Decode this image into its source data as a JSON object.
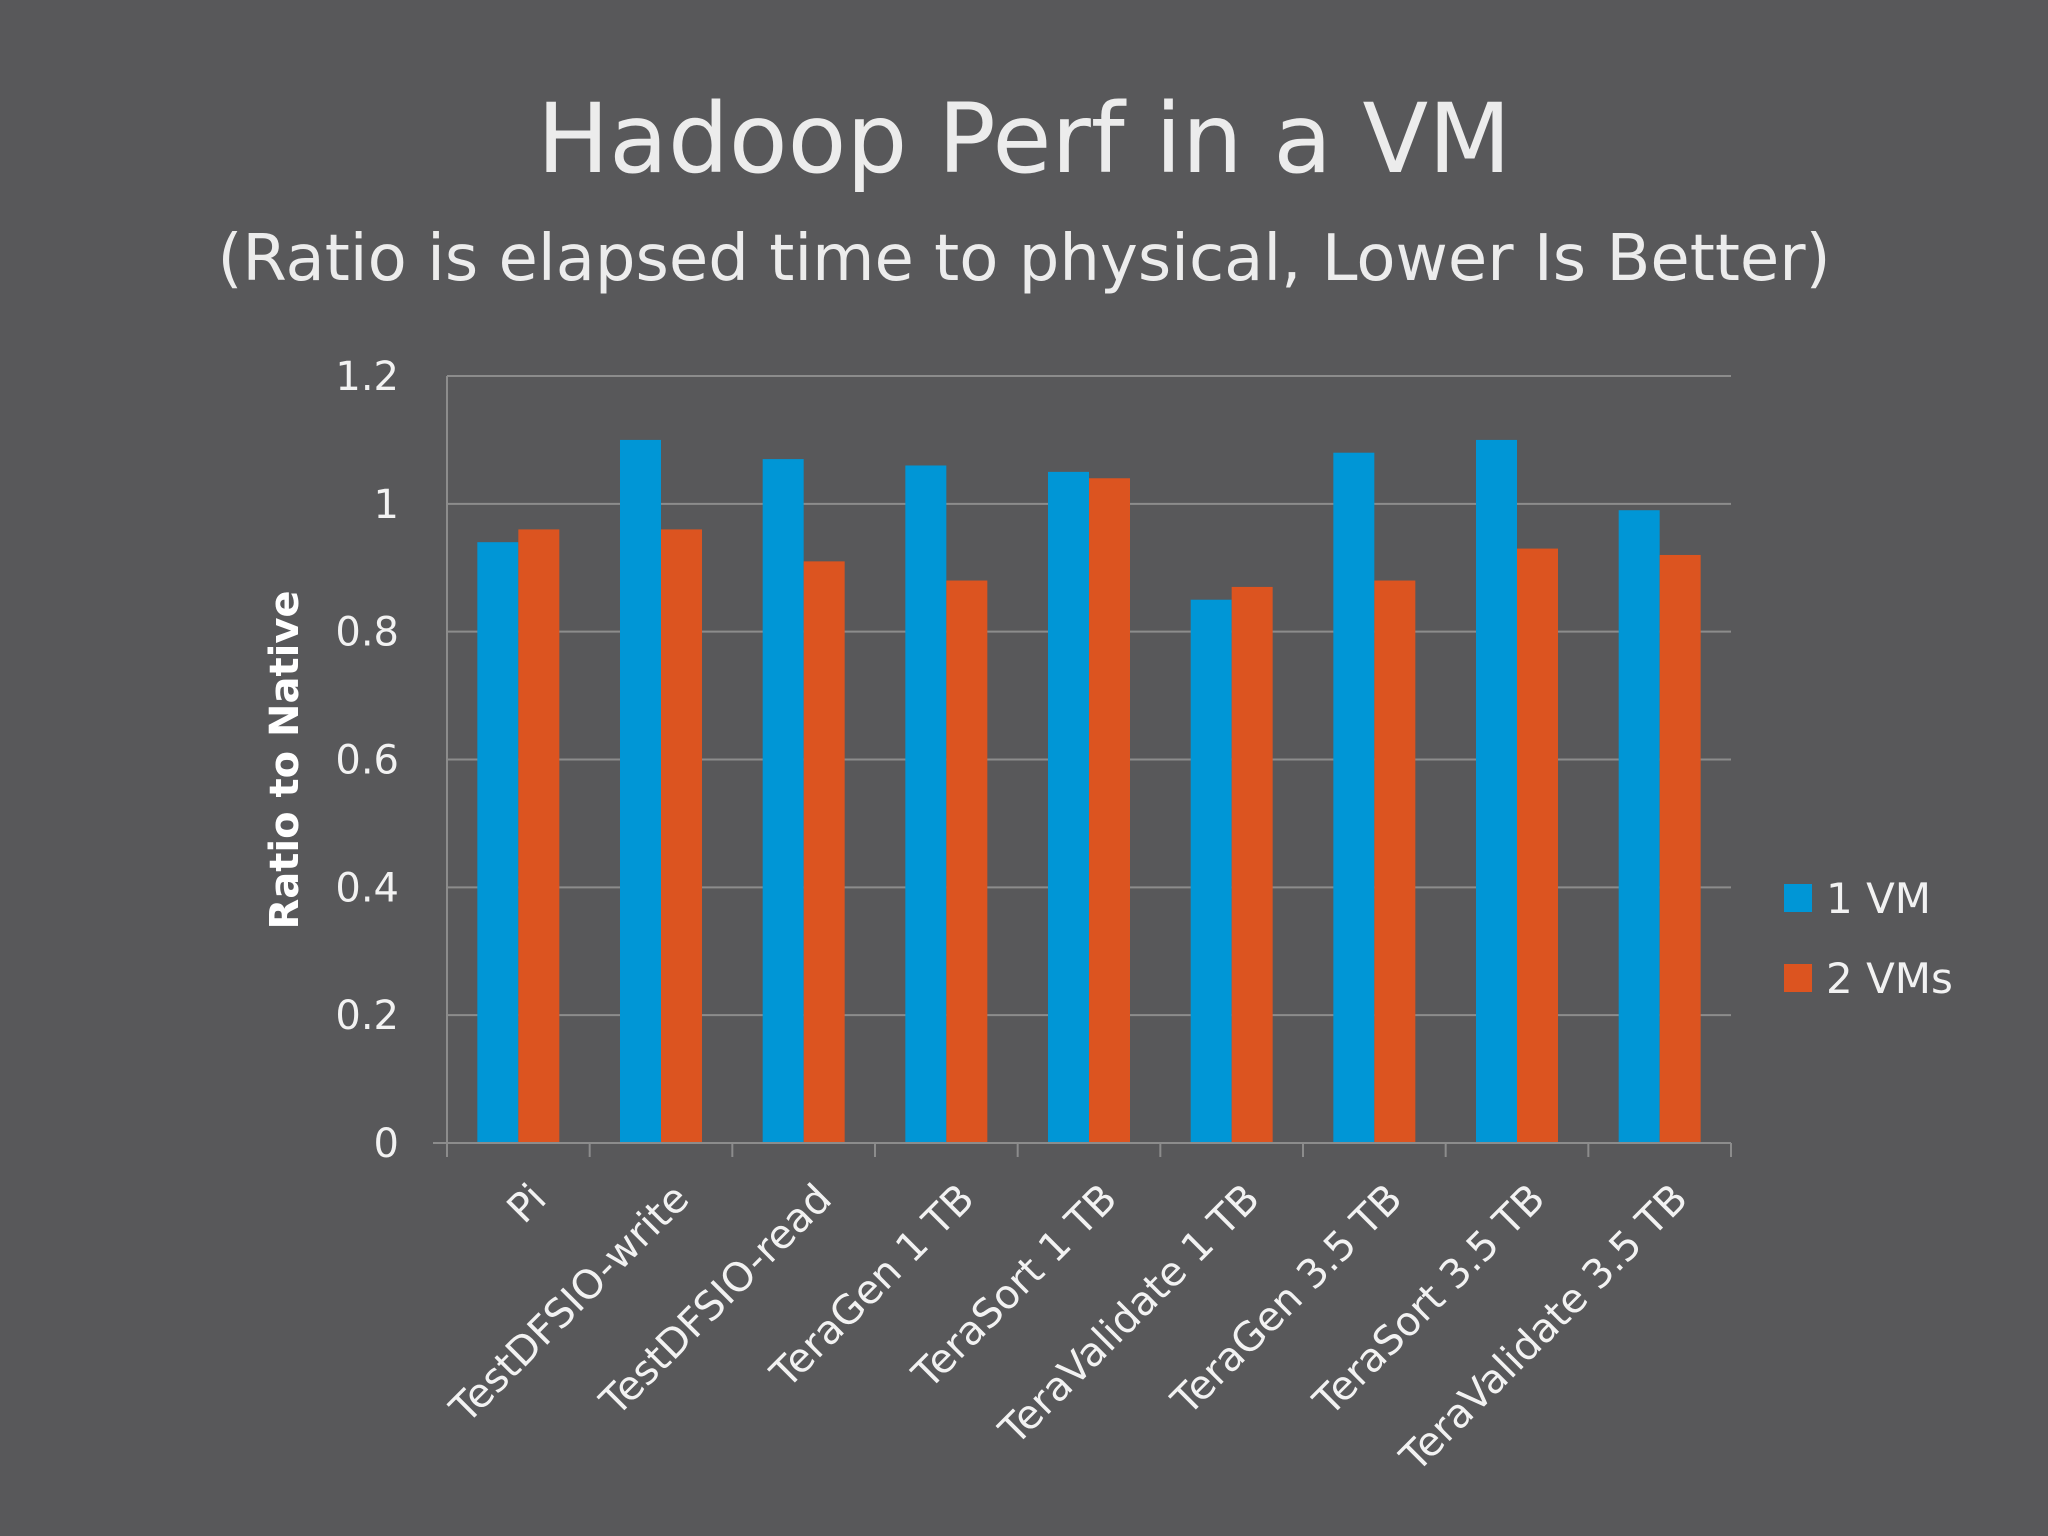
{
  "slide": {
    "title": "Hadoop Perf in  a VM",
    "subtitle": "(Ratio is elapsed time to physical, Lower Is Better)"
  },
  "colors": {
    "background": "#58585a",
    "series_1": "#0096d6",
    "series_2": "#dc5420",
    "gridline": "#8c8c8c",
    "text": "#ececec"
  },
  "chart_data": {
    "type": "bar",
    "title": "",
    "xlabel": "",
    "ylabel": "Ratio to Native",
    "ylim": [
      0,
      1.2
    ],
    "yticks": [
      0,
      0.2,
      0.4,
      0.6,
      0.8,
      1,
      1.2
    ],
    "ytick_labels": [
      "0",
      "0.2",
      "0.4",
      "0.6",
      "0.8",
      "1",
      "1.2"
    ],
    "grid": true,
    "legend_position": "right",
    "categories": [
      "Pi",
      "TestDFSIO-write",
      "TestDFSIO-read",
      "TeraGen 1 TB",
      "TeraSort 1 TB",
      "TeraValidate 1 TB",
      "TeraGen 3.5 TB",
      "TeraSort 3.5 TB",
      "TeraValidate 3.5 TB"
    ],
    "series": [
      {
        "name": "1 VM",
        "color": "#0096d6",
        "values": [
          0.94,
          1.1,
          1.07,
          1.06,
          1.05,
          0.85,
          1.08,
          1.1,
          0.99
        ]
      },
      {
        "name": "2 VMs",
        "color": "#dc5420",
        "values": [
          0.96,
          0.96,
          0.91,
          0.88,
          1.04,
          0.87,
          0.88,
          0.93,
          0.92
        ]
      }
    ]
  }
}
